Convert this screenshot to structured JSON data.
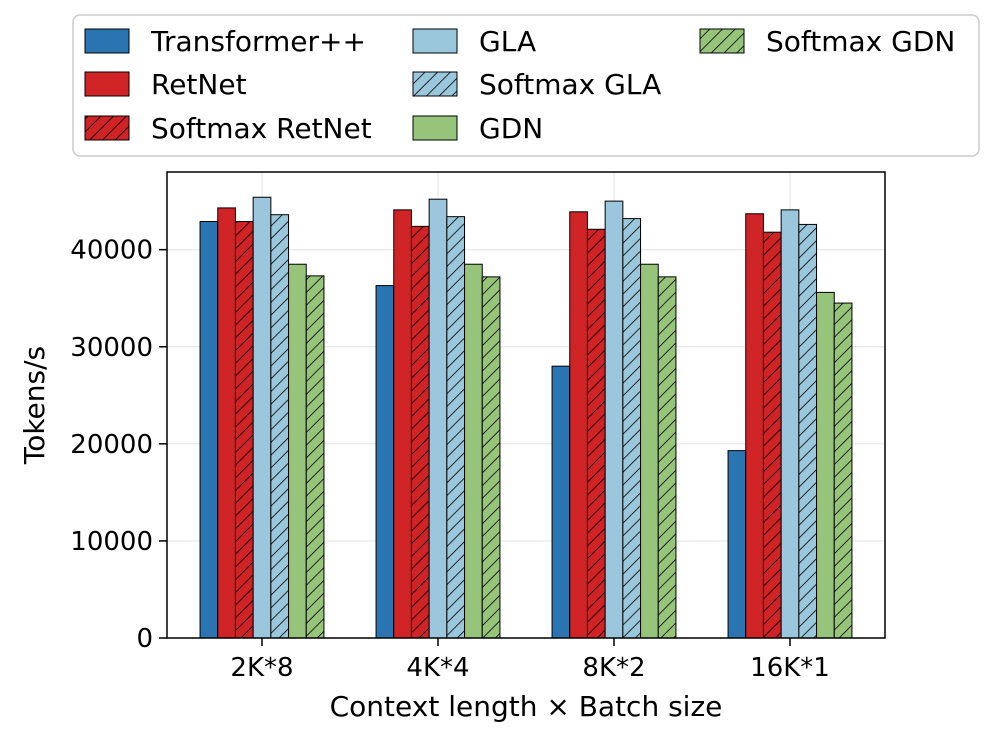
{
  "chart_data": {
    "type": "bar",
    "title": "",
    "xlabel": "Context length × Batch size",
    "ylabel": "Tokens/s",
    "ylim": [
      0,
      48000
    ],
    "yticks": [
      0,
      10000,
      20000,
      30000,
      40000
    ],
    "ytick_labels": [
      "0",
      "10000",
      "20000",
      "30000",
      "40000"
    ],
    "grid": true,
    "legend_position": "top",
    "categories": [
      "2K*8",
      "4K*4",
      "8K*2",
      "16K*1"
    ],
    "series": [
      {
        "name": "Transformer++",
        "color": "#2b74b2",
        "hatch": false,
        "values": [
          42900,
          36300,
          28000,
          19300
        ]
      },
      {
        "name": "RetNet",
        "color": "#cf2326",
        "hatch": false,
        "values": [
          44300,
          44100,
          43900,
          43700
        ]
      },
      {
        "name": "Softmax RetNet",
        "color": "#cf2326",
        "hatch": true,
        "values": [
          42900,
          42400,
          42100,
          41800
        ]
      },
      {
        "name": "GLA",
        "color": "#9ac7db",
        "hatch": false,
        "values": [
          45400,
          45200,
          45000,
          44100
        ]
      },
      {
        "name": "Softmax GLA",
        "color": "#9ac7db",
        "hatch": true,
        "values": [
          43600,
          43400,
          43200,
          42600
        ]
      },
      {
        "name": "GDN",
        "color": "#97c47b",
        "hatch": false,
        "values": [
          38500,
          38500,
          38500,
          35600
        ]
      },
      {
        "name": "Softmax GDN",
        "color": "#97c47b",
        "hatch": true,
        "values": [
          37300,
          37200,
          37200,
          34500
        ]
      }
    ]
  }
}
